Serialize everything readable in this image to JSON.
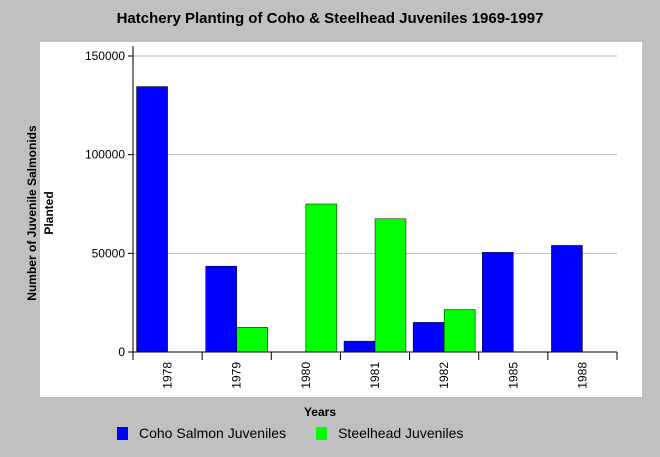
{
  "chart_data": {
    "type": "bar",
    "title": "Hatchery Planting of Coho & Steelhead Juveniles 1969-1997",
    "xlabel": "Years",
    "ylabel": "Number of Juvenile Salmonids Planted",
    "ylim": [
      0,
      150000
    ],
    "yticks": [
      "0",
      "50000",
      "100000",
      "150000"
    ],
    "categories": [
      "1978",
      "1979",
      "1980",
      "1981",
      "1982",
      "1985",
      "1988"
    ],
    "grid": true,
    "legend": "bottom",
    "series": [
      {
        "name": "Coho Salmon Juveniles",
        "color": "#0000ff",
        "values": [
          134500,
          43500,
          0,
          5500,
          15000,
          50500,
          54000
        ]
      },
      {
        "name": "Steelhead Juveniles",
        "color": "#00ff00",
        "values": [
          0,
          12500,
          75000,
          67500,
          21500,
          0,
          0
        ]
      }
    ]
  }
}
